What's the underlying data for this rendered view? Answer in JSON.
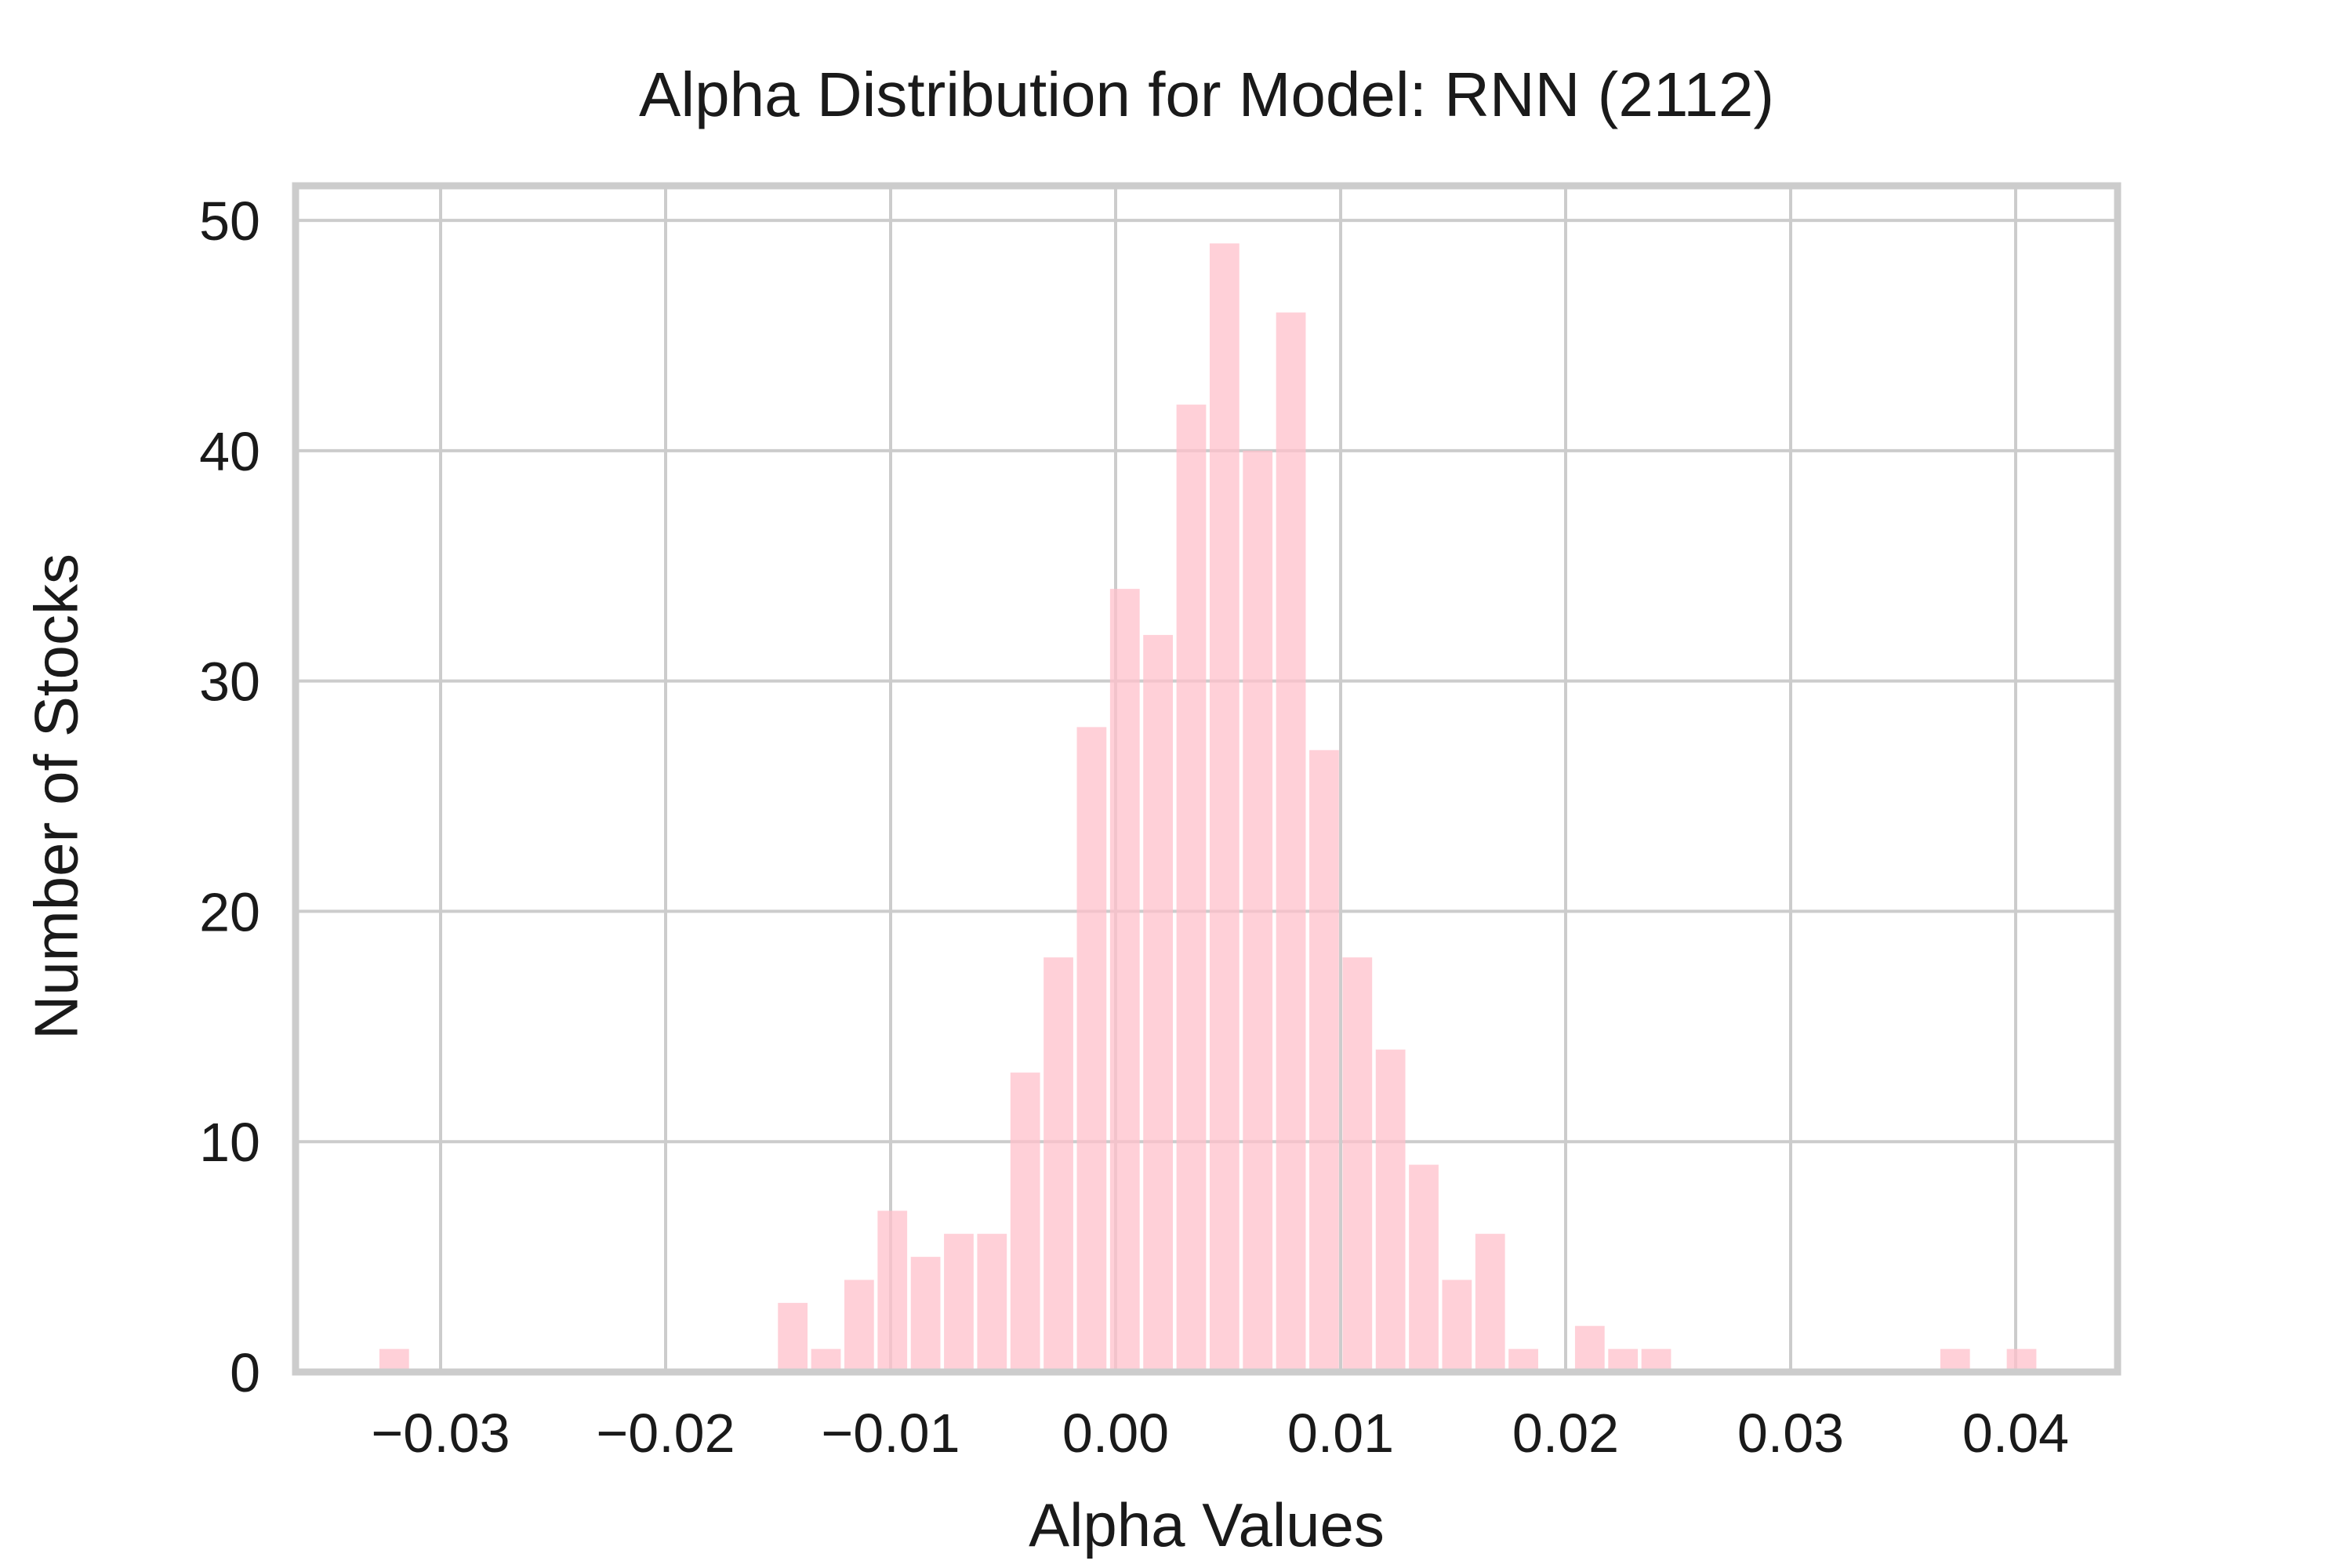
{
  "chart_data": {
    "type": "bar",
    "subtype": "histogram",
    "title": "Alpha Distribution for Model: RNN (2112)",
    "xlabel": "Alpha Values",
    "ylabel": "Number of Stocks",
    "bin_start": -0.0328,
    "bin_width": 0.001476,
    "counts": [
      1,
      0,
      0,
      0,
      0,
      0,
      0,
      0,
      0,
      0,
      0,
      0,
      3,
      1,
      4,
      7,
      5,
      6,
      6,
      13,
      18,
      28,
      34,
      32,
      42,
      49,
      40,
      46,
      27,
      18,
      14,
      9,
      4,
      6,
      1,
      0,
      2,
      1,
      1,
      0,
      0,
      0,
      0,
      0,
      0,
      0,
      0,
      1,
      0,
      1
    ],
    "total_stocks": 420,
    "xticks": [
      -0.03,
      -0.02,
      -0.01,
      0.0,
      0.01,
      0.02,
      0.03,
      0.04
    ],
    "xtick_labels": [
      "−0.03",
      "−0.02",
      "−0.01",
      "0.00",
      "0.01",
      "0.02",
      "0.03",
      "0.04"
    ],
    "yticks": [
      0,
      10,
      20,
      30,
      40,
      50
    ],
    "ytick_labels": [
      "0",
      "10",
      "20",
      "30",
      "40",
      "50"
    ],
    "xlim": [
      -0.036446,
      0.04453
    ],
    "ylim": [
      0,
      51.5
    ],
    "grid": true,
    "legend": null,
    "bar_color": "#FFC0CB",
    "bar_alpha": 0.75,
    "grid_color": "#CCCCCC",
    "spine_color": "#CCCCCC",
    "text_color": "#1a1a1a",
    "background_color": "#FFFFFF"
  }
}
